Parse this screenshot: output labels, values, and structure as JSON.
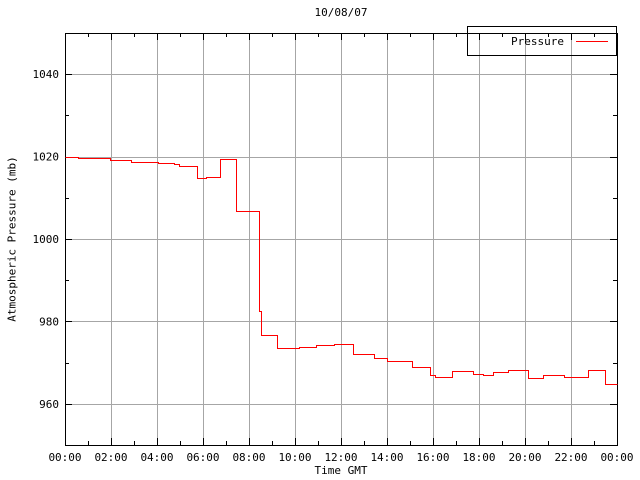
{
  "chart": {
    "title": "10/08/07",
    "xlabel": "Time GMT",
    "ylabel": "Atmospheric Pressure (mb)",
    "legend": {
      "label": "Pressure"
    }
  },
  "chart_data": {
    "type": "line",
    "step": true,
    "title": "10/08/07",
    "xlabel": "Time GMT",
    "ylabel": "Atmospheric Pressure (mb)",
    "x_unit": "hours_gmt",
    "xlim": [
      0,
      24
    ],
    "ylim": [
      950,
      1050
    ],
    "x_major_tick_hours": [
      0,
      2,
      4,
      6,
      8,
      10,
      12,
      14,
      16,
      18,
      20,
      22,
      24
    ],
    "x_tick_labels": [
      "00:00",
      "02:00",
      "04:00",
      "06:00",
      "08:00",
      "10:00",
      "12:00",
      "14:00",
      "16:00",
      "18:00",
      "20:00",
      "22:00",
      "00:00"
    ],
    "x_minor_tick_interval_hours": 1,
    "y_major_ticks": [
      960,
      980,
      1000,
      1020,
      1040
    ],
    "y_minor_ticks": [
      970,
      990,
      1010,
      1030
    ],
    "grid": "major",
    "legend_position": "top-right-box",
    "colors": {
      "line": "#ff0000",
      "grid": "#a6a6a6",
      "axis": "#000000",
      "background": "#ffffff"
    },
    "series": [
      {
        "name": "Pressure",
        "color": "#ff0000",
        "points": [
          [
            0.0,
            1019.8
          ],
          [
            0.55,
            1019.6
          ],
          [
            1.97,
            1019.2
          ],
          [
            2.88,
            1018.8
          ],
          [
            4.05,
            1018.5
          ],
          [
            4.72,
            1018.2
          ],
          [
            4.97,
            1017.6
          ],
          [
            5.73,
            1014.7
          ],
          [
            6.13,
            1015.1
          ],
          [
            6.75,
            1019.4
          ],
          [
            7.43,
            1006.7
          ],
          [
            8.42,
            982.5
          ],
          [
            8.52,
            976.7
          ],
          [
            9.22,
            973.5
          ],
          [
            10.17,
            973.9
          ],
          [
            10.92,
            974.3
          ],
          [
            11.7,
            974.6
          ],
          [
            12.53,
            972.2
          ],
          [
            13.45,
            971.1
          ],
          [
            14.0,
            970.3
          ],
          [
            15.07,
            969.0
          ],
          [
            15.88,
            966.9
          ],
          [
            16.08,
            966.4
          ],
          [
            16.82,
            968.0
          ],
          [
            17.72,
            967.3
          ],
          [
            18.17,
            966.9
          ],
          [
            18.62,
            967.6
          ],
          [
            19.28,
            968.1
          ],
          [
            20.13,
            966.3
          ],
          [
            20.8,
            967.0
          ],
          [
            21.7,
            966.4
          ],
          [
            22.75,
            968.2
          ],
          [
            23.47,
            964.8
          ],
          [
            24.0,
            964.8
          ]
        ]
      }
    ]
  }
}
